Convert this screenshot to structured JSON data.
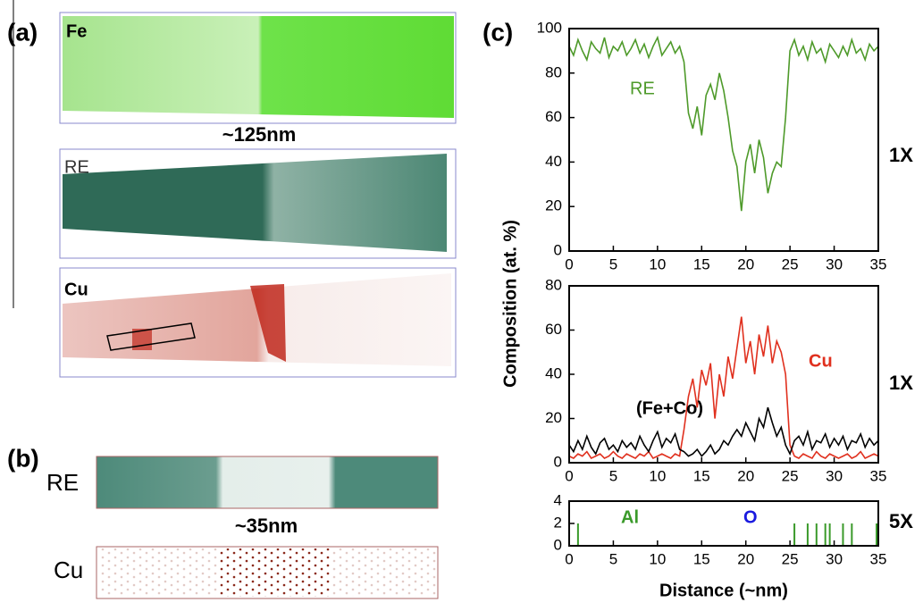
{
  "panel_a": {
    "label": "(a)",
    "fe": "Fe",
    "scale": "~125nm",
    "re": "RE",
    "cu": "Cu"
  },
  "panel_b": {
    "label": "(b)",
    "re": "RE",
    "scale": "~35nm",
    "cu": "Cu"
  },
  "panel_c": {
    "label": "(c)",
    "ylabel": "Composition (at. %)",
    "xlabel": "Distance (~nm)"
  },
  "chart_data": [
    {
      "type": "line",
      "side_label": "1X",
      "x": [
        0,
        0.5,
        1,
        1.5,
        2,
        2.5,
        3,
        3.5,
        4,
        4.5,
        5,
        5.5,
        6,
        6.5,
        7,
        7.5,
        8,
        8.5,
        9,
        9.5,
        10,
        10.5,
        11,
        11.5,
        12,
        12.5,
        13,
        13.5,
        14,
        14.5,
        15,
        15.5,
        16,
        16.5,
        17,
        17.5,
        18,
        18.5,
        19,
        19.5,
        20,
        20.5,
        21,
        21.5,
        22,
        22.5,
        23,
        23.5,
        24,
        24.5,
        25,
        25.5,
        26,
        26.5,
        27,
        27.5,
        28,
        28.5,
        29,
        29.5,
        30,
        30.5,
        31,
        31.5,
        32,
        32.5,
        33,
        33.5,
        34,
        34.5,
        35
      ],
      "xlim": [
        0,
        35
      ],
      "ylim": [
        0,
        100
      ],
      "xticks": [
        0,
        5,
        10,
        15,
        20,
        25,
        30,
        35
      ],
      "yticks": [
        0,
        20,
        40,
        60,
        80,
        100
      ],
      "series": [
        {
          "name": "RE",
          "color": "#4e9a2a",
          "values": [
            92,
            88,
            95,
            90,
            86,
            94,
            91,
            89,
            96,
            87,
            92,
            90,
            94,
            88,
            91,
            95,
            89,
            93,
            87,
            92,
            96,
            88,
            91,
            94,
            89,
            92,
            85,
            62,
            55,
            65,
            52,
            70,
            75,
            68,
            80,
            72,
            60,
            45,
            38,
            18,
            40,
            48,
            35,
            50,
            42,
            26,
            35,
            40,
            38,
            60,
            90,
            95,
            88,
            92,
            86,
            94,
            89,
            91,
            85,
            93,
            90,
            87,
            92,
            88,
            95,
            89,
            91,
            86,
            93,
            90,
            92
          ]
        }
      ]
    },
    {
      "type": "line",
      "side_label": "1X",
      "x": [
        0,
        0.5,
        1,
        1.5,
        2,
        2.5,
        3,
        3.5,
        4,
        4.5,
        5,
        5.5,
        6,
        6.5,
        7,
        7.5,
        8,
        8.5,
        9,
        9.5,
        10,
        10.5,
        11,
        11.5,
        12,
        12.5,
        13,
        13.5,
        14,
        14.5,
        15,
        15.5,
        16,
        16.5,
        17,
        17.5,
        18,
        18.5,
        19,
        19.5,
        20,
        20.5,
        21,
        21.5,
        22,
        22.5,
        23,
        23.5,
        24,
        24.5,
        25,
        25.5,
        26,
        26.5,
        27,
        27.5,
        28,
        28.5,
        29,
        29.5,
        30,
        30.5,
        31,
        31.5,
        32,
        32.5,
        33,
        33.5,
        34,
        34.5,
        35
      ],
      "xlim": [
        0,
        35
      ],
      "ylim": [
        0,
        80
      ],
      "xticks": [
        0,
        5,
        10,
        15,
        20,
        25,
        30,
        35
      ],
      "yticks": [
        0,
        20,
        40,
        60,
        80
      ],
      "series": [
        {
          "name": "Cu",
          "color": "#e0301e",
          "values": [
            3,
            2,
            4,
            3,
            5,
            2,
            3,
            4,
            2,
            3,
            5,
            3,
            2,
            4,
            3,
            2,
            4,
            3,
            5,
            2,
            3,
            4,
            3,
            2,
            4,
            3,
            15,
            30,
            38,
            25,
            42,
            35,
            45,
            20,
            40,
            30,
            48,
            38,
            52,
            66,
            45,
            55,
            40,
            58,
            48,
            62,
            45,
            55,
            50,
            40,
            8,
            3,
            2,
            4,
            3,
            2,
            5,
            3,
            2,
            4,
            3,
            2,
            3,
            4,
            2,
            3,
            5,
            2,
            3,
            4,
            3
          ]
        },
        {
          "name": "(Fe+Co)",
          "color": "#000000",
          "values": [
            8,
            5,
            10,
            6,
            12,
            7,
            4,
            9,
            11,
            6,
            8,
            5,
            10,
            7,
            9,
            6,
            12,
            8,
            5,
            10,
            14,
            7,
            11,
            9,
            13,
            6,
            5,
            3,
            4,
            6,
            3,
            5,
            8,
            4,
            6,
            10,
            8,
            12,
            15,
            12,
            18,
            14,
            10,
            20,
            16,
            25,
            18,
            12,
            16,
            8,
            4,
            10,
            12,
            8,
            14,
            6,
            10,
            9,
            13,
            7,
            11,
            8,
            12,
            6,
            10,
            9,
            13,
            7,
            11,
            8,
            10
          ]
        }
      ]
    },
    {
      "type": "line",
      "side_label": "5X",
      "xlim": [
        0,
        35
      ],
      "ylim": [
        0,
        4
      ],
      "xticks": [
        0,
        5,
        10,
        15,
        20,
        25,
        30,
        35
      ],
      "yticks": [
        0,
        2,
        4
      ],
      "series": [
        {
          "name": "Al",
          "color": "#3a9a2a",
          "style": "stem",
          "x": [
            1,
            25.5,
            27,
            28,
            29,
            29.5,
            31,
            32,
            34.8
          ],
          "values": [
            2,
            2,
            2,
            2,
            2,
            2,
            2,
            2,
            2
          ]
        },
        {
          "name": "O",
          "color": "#1a1adf",
          "x": [
            0,
            35
          ],
          "values": [
            0,
            0
          ]
        }
      ]
    }
  ]
}
